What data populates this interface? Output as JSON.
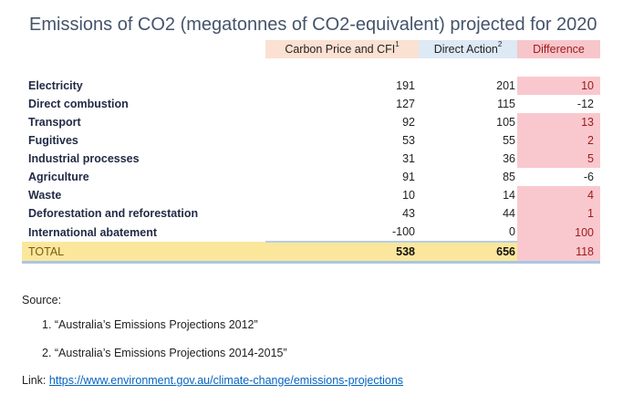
{
  "title": "Emissions of CO2 (megatonnes of CO2-equivalent) projected for 2020",
  "columns": {
    "carbon_price": "Carbon Price and CFI",
    "carbon_price_sup": "1",
    "direct_action": "Direct Action",
    "direct_action_sup": "2",
    "difference": "Difference"
  },
  "rows": [
    {
      "label": "Electricity",
      "carbon_price": "191",
      "direct_action": "201",
      "difference": "10"
    },
    {
      "label": "Direct combustion",
      "carbon_price": "127",
      "direct_action": "115",
      "difference": "-12"
    },
    {
      "label": "Transport",
      "carbon_price": "92",
      "direct_action": "105",
      "difference": "13"
    },
    {
      "label": "Fugitives",
      "carbon_price": "53",
      "direct_action": "55",
      "difference": "2"
    },
    {
      "label": "Industrial processes",
      "carbon_price": "31",
      "direct_action": "36",
      "difference": "5"
    },
    {
      "label": "Agriculture",
      "carbon_price": "91",
      "direct_action": "85",
      "difference": "-6"
    },
    {
      "label": "Waste",
      "carbon_price": "10",
      "direct_action": "14",
      "difference": "4"
    },
    {
      "label": "Deforestation and reforestation",
      "carbon_price": "43",
      "direct_action": "44",
      "difference": "1"
    },
    {
      "label": "International abatement",
      "carbon_price": "-100",
      "direct_action": "0",
      "difference": "100"
    }
  ],
  "total": {
    "label": "TOTAL",
    "carbon_price": "538",
    "direct_action": "656",
    "difference": "118"
  },
  "footer": {
    "source_label": "Source:",
    "references": [
      "1.    “Australia’s Emissions Projections 2012”",
      "2.    “Australia’s Emissions Projections 2014-2015”"
    ],
    "link_label": "Link: ",
    "link_url": "https://www.environment.gov.au/climate-change/emissions-projections"
  },
  "colors": {
    "title": "#44546a",
    "carbon_price_header": "#fbe1d2",
    "direct_action_header": "#dde9f5",
    "difference_positive": "#f9c8ce",
    "total_row": "#fbe79c",
    "link": "#0563c1"
  }
}
